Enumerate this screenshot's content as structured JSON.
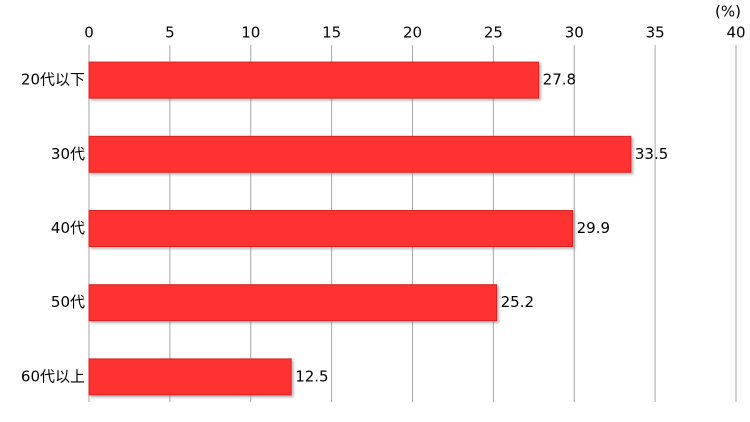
{
  "chart_data": {
    "type": "bar",
    "orientation": "horizontal",
    "x_unit": "(%)",
    "categories": [
      "20代以下",
      "30代",
      "40代",
      "50代",
      "60代以上"
    ],
    "values": [
      27.8,
      33.5,
      29.9,
      25.2,
      12.5
    ],
    "color": "#ff3333",
    "xlim": [
      0,
      40
    ],
    "xticks": [
      0,
      5,
      10,
      15,
      20,
      25,
      30,
      35,
      40
    ],
    "grid": true
  }
}
